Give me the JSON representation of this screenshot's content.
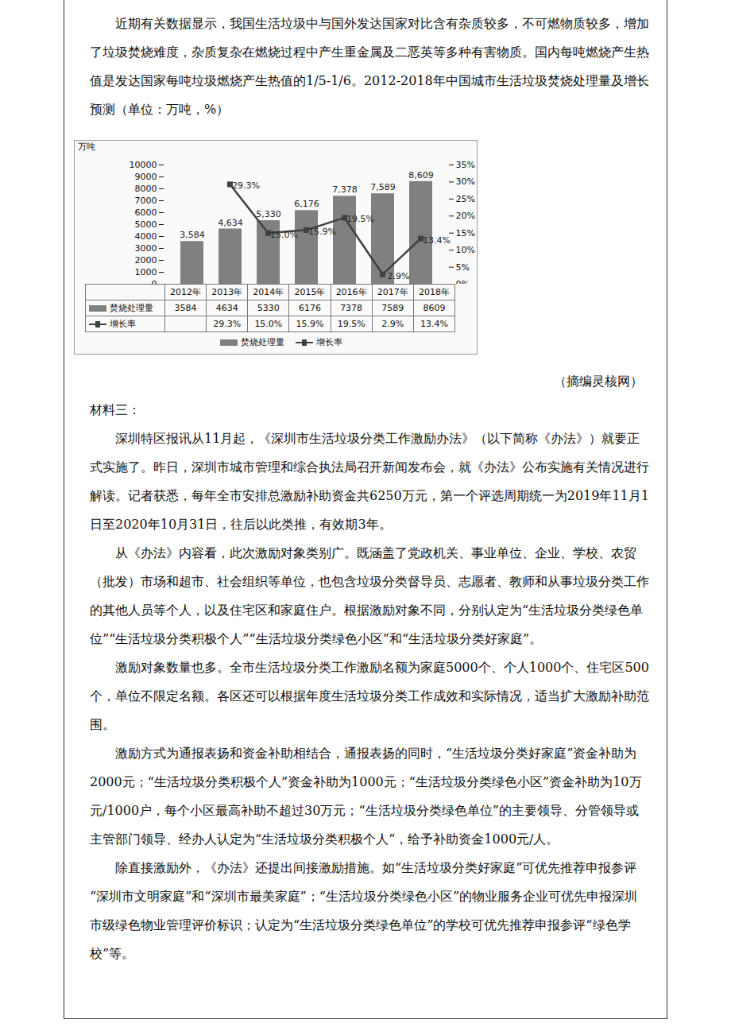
{
  "top_paragraph": "近期有关数据显示，我国生活垃圾中与国外发达国家对比含有杂质较多，不可燃物质较多，增加了垃圾焚烧难度，杂质复杂在燃烧过程中产生重金属及二恶英等多种有害物质。国内每吨燃烧产生热值是发达国家每吨垃圾燃烧产生热值的1/5-1/6。2012-2018年中国城市生活垃圾焚烧处理量及增长预测（单位：万吨，%）",
  "chart_data": {
    "type": "bar",
    "ylabel": "万吨",
    "categories": [
      "2012年",
      "2013年",
      "2014年",
      "2015年",
      "2016年",
      "2017年",
      "2018年"
    ],
    "series": [
      {
        "name": "焚烧处理量",
        "type": "bar",
        "color": "#808080",
        "values": [
          3584,
          4634,
          5330,
          6176,
          7378,
          7589,
          8609
        ],
        "value_labels": [
          "3,584",
          "4,634",
          "5,330",
          "6,176",
          "7,378",
          "7,589",
          "8,609"
        ]
      },
      {
        "name": "增长率",
        "type": "line",
        "axis": "y2",
        "color": "#404040",
        "marker": "square",
        "values": [
          null,
          29.3,
          15.0,
          15.9,
          19.5,
          2.9,
          13.4
        ],
        "value_labels": [
          null,
          "29.3%",
          "15.0%",
          "15.9%",
          "19.5%",
          "2.9%",
          "13.4%"
        ]
      }
    ],
    "ylim": [
      0,
      10000
    ],
    "yticks": [
      0,
      1000,
      2000,
      3000,
      4000,
      5000,
      6000,
      7000,
      8000,
      9000,
      10000
    ],
    "y2lim": [
      0,
      35
    ],
    "y2ticks": [
      {
        "value": 0,
        "label": "0%"
      },
      {
        "value": 5,
        "label": "5%"
      },
      {
        "value": 10,
        "label": "10%"
      },
      {
        "value": 15,
        "label": "15%"
      },
      {
        "value": 20,
        "label": "20%"
      },
      {
        "value": 25,
        "label": "25%"
      },
      {
        "value": 30,
        "label": "30%"
      },
      {
        "value": 35,
        "label": "35%"
      }
    ],
    "data_labels": true,
    "grid": false,
    "legend": "bottom"
  },
  "source": "（摘编灵核网）",
  "section_label": "材料三：",
  "paragraphs": [
    "深圳特区报讯从11月起，《深圳市生活垃圾分类工作激励办法》（以下简称《办法》）就要正式实施了。昨日，深圳市城市管理和综合执法局召开新闻发布会，就《办法》公布实施有关情况进行解读。记者获悉，每年全市安排总激励补助资金共6250万元，第一个评选周期统一为2019年11月1日至2020年10月31日，往后以此类推，有效期3年。",
    "从《办法》内容看，此次激励对象类别广。既涵盖了党政机关、事业单位、企业、学校、农贸（批发）市场和超市、社会组织等单位，也包含垃圾分类督导员、志愿者、教师和从事垃圾分类工作的其他人员等个人，以及住宅区和家庭住户。根据激励对象不同，分别认定为“生活垃圾分类绿色单位”“生活垃圾分类积极个人”“生活垃圾分类绿色小区”和“生活垃圾分类好家庭”。",
    "激励对象数量也多。全市生活垃圾分类工作激励名额为家庭5000个、个人1000个、住宅区500个，单位不限定名额。各区还可以根据年度生活垃圾分类工作成效和实际情况，适当扩大激励补助范围。",
    "激励方式为通报表扬和资金补助相结合，通报表扬的同时，“生活垃圾分类好家庭”资金补助为2000元；“生活垃圾分类积极个人”资金补助为1000元；“生活垃圾分类绿色小区”资金补助为10万元/1000户，每个小区最高补助不超过30万元；“生活垃圾分类绿色单位”的主要领导、分管领导或主管部门领导、经办人认定为“生活垃圾分类积极个人”，给予补助资金1000元/人。",
    "除直接激励外，《办法》还提出间接激励措施。如“生活垃圾分类好家庭”可优先推荐申报参评“深圳市文明家庭”和“深圳市最美家庭”；“生活垃圾分类绿色小区”的物业服务企业可优先申报深圳市级绿色物业管理评价标识；认定为“生活垃圾分类绿色单位”的学校可优先推荐申报参评“绿色学校”等。"
  ]
}
